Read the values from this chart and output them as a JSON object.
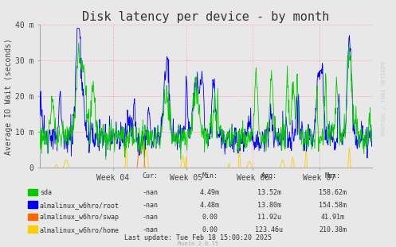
{
  "title": "Disk latency per device - by month",
  "ylabel": "Average IO Wait (seconds)",
  "background_color": "#e8e8e8",
  "plot_bg_color": "#e8e8e8",
  "grid_color": "#ffffff",
  "ylim": [
    0,
    40
  ],
  "ytick_labels": [
    "0",
    "10 m",
    "20 m",
    "30 m",
    "40 m"
  ],
  "ytick_values": [
    0,
    10,
    20,
    30,
    40
  ],
  "xtick_labels": [
    "Week 04",
    "Week 05",
    "Week 06",
    "Week 07"
  ],
  "colors": {
    "sda": "#00cc00",
    "root": "#0000ff",
    "swap": "#ff6600",
    "home": "#ffcc00"
  },
  "legend": [
    {
      "label": "sda",
      "color": "#00cc00"
    },
    {
      "label": "almalinux_w6hro/root",
      "color": "#0000ff"
    },
    {
      "label": "almalinux_w6hro/swap",
      "color": "#ff6600"
    },
    {
      "label": "almalinux_w6hro/home",
      "color": "#ffcc00"
    }
  ],
  "stats_header": [
    "Cur:",
    "Min:",
    "Avg:",
    "Max:"
  ],
  "stats": [
    [
      "-nan",
      "4.49m",
      "13.52m",
      "158.62m"
    ],
    [
      "-nan",
      "4.48m",
      "13.80m",
      "154.58m"
    ],
    [
      "-nan",
      "0.00",
      "11.92u",
      "41.91m"
    ],
    [
      "-nan",
      "0.00",
      "123.46u",
      "210.38m"
    ]
  ],
  "last_update": "Last update: Tue Feb 18 15:00:20 2025",
  "munin_version": "Munin 2.0.75",
  "rrdtool_text": "RRDTOOL / TOBI OETIKER",
  "title_fontsize": 11,
  "axis_fontsize": 7,
  "legend_fontsize": 7,
  "num_points": 800
}
